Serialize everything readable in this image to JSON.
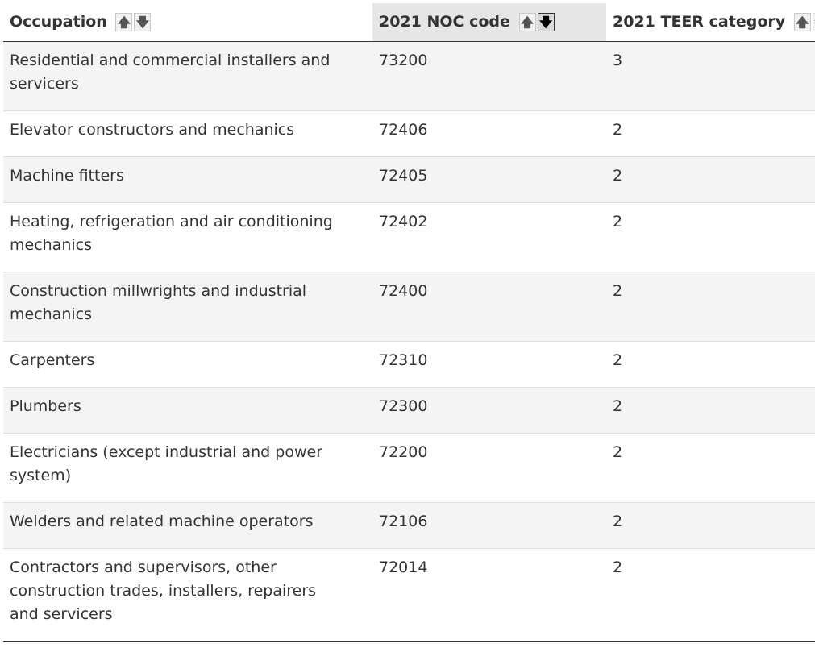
{
  "table": {
    "columns": [
      {
        "label": "Occupation",
        "sort_up_icon": "arrow-up-icon",
        "sort_down_icon": "arrow-down-icon"
      },
      {
        "label": "2021 NOC code",
        "sort_up_icon": "arrow-up-icon",
        "sort_down_icon": "arrow-down-icon",
        "sorted": "descending"
      },
      {
        "label": "2021 TEER category",
        "sort_up_icon": "arrow-up-icon",
        "sort_down_icon": "arrow-down-icon"
      }
    ],
    "rows": [
      {
        "occupation": "Residential and commercial installers and servicers",
        "noc": "73200",
        "teer": "3"
      },
      {
        "occupation": "Elevator constructors and mechanics",
        "noc": "72406",
        "teer": "2"
      },
      {
        "occupation": "Machine fitters",
        "noc": "72405",
        "teer": "2"
      },
      {
        "occupation": "Heating, refrigeration and air conditioning mechanics",
        "noc": "72402",
        "teer": "2"
      },
      {
        "occupation": "Construction millwrights and industrial mechanics",
        "noc": "72400",
        "teer": "2"
      },
      {
        "occupation": "Carpenters",
        "noc": "72310",
        "teer": "2"
      },
      {
        "occupation": "Plumbers",
        "noc": "72300",
        "teer": "2"
      },
      {
        "occupation": "Electricians (except industrial and power system)",
        "noc": "72200",
        "teer": "2"
      },
      {
        "occupation": "Welders and related machine operators",
        "noc": "72106",
        "teer": "2"
      },
      {
        "occupation": "Contractors and supervisors, other construction trades, installers, repairers and servicers",
        "noc": "72014",
        "teer": "2"
      }
    ]
  },
  "colors": {
    "sorted_header_bg": "#e6e6e6",
    "stripe_bg": "#f4f4f4",
    "text": "#333333"
  }
}
